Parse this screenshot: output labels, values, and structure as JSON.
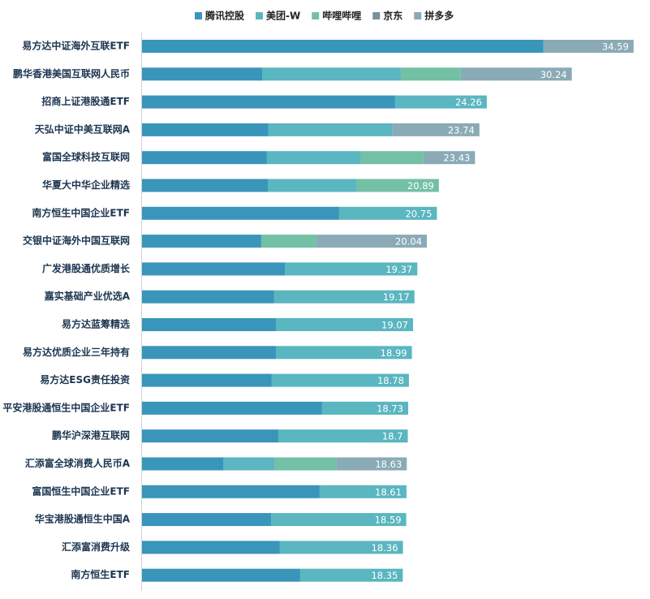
{
  "chart_data": {
    "type": "stacked-barh",
    "categories": [
      "易方达中证海外互联ETF",
      "鹏华香港美国互联网人民币",
      "招商上证港股通ETF",
      "天弘中证中美互联网A",
      "富国全球科技互联网",
      "华夏大中华企业精选",
      "南方恒生中国企业ETF",
      "交银中证海外中国互联网",
      "广发港股通优质增长",
      "嘉实基础产业优选A",
      "易方达蓝筹精选",
      "易方达优质企业三年持有",
      "易方达ESG责任投资",
      "平安港股通恒生中国企业ETF",
      "鹏华沪深港互联网",
      "汇添富全球消费人民币A",
      "富国恒生中国企业ETF",
      "华宝港股通恒生中国A",
      "汇添富消费升级",
      "南方恒生ETF"
    ],
    "series": [
      {
        "name": "腾讯控股",
        "color": "#3a95bb",
        "values": [
          28.25,
          8.45,
          17.81,
          8.9,
          8.79,
          8.85,
          13.87,
          8.39,
          10.05,
          9.3,
          9.42,
          9.42,
          9.13,
          12.67,
          9.59,
          5.71,
          12.5,
          9.08,
          9.7,
          11.13
        ]
      },
      {
        "name": "美团-W",
        "color": "#5ab6c0",
        "values": [
          null,
          9.76,
          6.45,
          8.73,
          6.62,
          6.22,
          6.88,
          null,
          9.32,
          9.87,
          9.65,
          9.57,
          9.65,
          6.06,
          9.11,
          3.6,
          6.11,
          9.51,
          8.66,
          7.22
        ]
      },
      {
        "name": "哔哩哔哩",
        "color": "#73c0a5",
        "values": [
          null,
          4.22,
          null,
          null,
          4.39,
          5.82,
          null,
          3.88,
          null,
          null,
          null,
          null,
          null,
          null,
          null,
          4.39,
          null,
          null,
          null,
          null
        ]
      },
      {
        "name": "京东",
        "color": "#7b8e99",
        "values": [
          null,
          null,
          null,
          null,
          null,
          null,
          null,
          null,
          null,
          null,
          null,
          null,
          null,
          null,
          null,
          null,
          null,
          null,
          null,
          null
        ]
      },
      {
        "name": "拼多多",
        "color": "#8aaab6",
        "values": [
          6.34,
          7.81,
          null,
          6.11,
          3.63,
          null,
          null,
          7.77,
          null,
          null,
          null,
          null,
          null,
          null,
          null,
          4.93,
          null,
          null,
          null,
          null
        ]
      }
    ],
    "totals": [
      34.59,
      30.24,
      24.26,
      23.74,
      23.43,
      20.89,
      20.75,
      20.04,
      19.37,
      19.17,
      19.07,
      18.99,
      18.78,
      18.73,
      18.7,
      18.63,
      18.61,
      18.59,
      18.36,
      18.35
    ],
    "xlim": [
      0,
      35
    ]
  }
}
